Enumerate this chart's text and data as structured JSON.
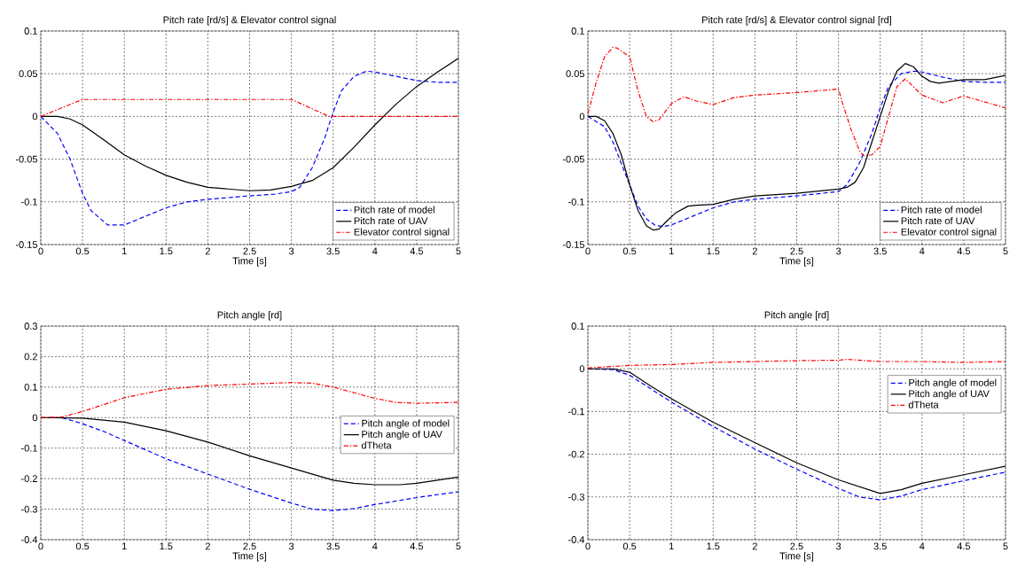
{
  "chart_data": [
    {
      "type": "line",
      "title": "Pitch rate [rd/s] & Elevator control signal",
      "xlabel": "Time [s]",
      "xlim": [
        0,
        5
      ],
      "ylim": [
        -0.15,
        0.1
      ],
      "xticks": [
        0,
        0.5,
        1,
        1.5,
        2,
        2.5,
        3,
        3.5,
        4,
        4.5,
        5
      ],
      "yticks": [
        -0.15,
        -0.1,
        -0.05,
        0,
        0.05,
        0.1
      ],
      "grid": true,
      "legend": "bottom right",
      "marker": "none",
      "series": [
        {
          "name": "Pitch rate of model",
          "color": "#0000ff",
          "line_style": "dashed",
          "x": [
            0,
            0.2,
            0.35,
            0.5,
            0.6,
            0.8,
            1.0,
            1.25,
            1.5,
            1.75,
            2,
            2.5,
            2.8,
            3.0,
            3.1,
            3.25,
            3.4,
            3.5,
            3.6,
            3.75,
            3.9,
            4.0,
            4.25,
            4.5,
            4.75,
            5
          ],
          "values": [
            0,
            -0.02,
            -0.05,
            -0.09,
            -0.11,
            -0.127,
            -0.127,
            -0.117,
            -0.107,
            -0.1,
            -0.097,
            -0.093,
            -0.091,
            -0.088,
            -0.083,
            -0.06,
            -0.025,
            0.005,
            0.03,
            0.047,
            0.053,
            0.052,
            0.047,
            0.042,
            0.04,
            0.04
          ]
        },
        {
          "name": "Pitch rate of UAV",
          "color": "#000000",
          "line_style": "solid",
          "x": [
            0,
            0.2,
            0.35,
            0.5,
            0.75,
            1.0,
            1.25,
            1.5,
            1.75,
            2,
            2.5,
            2.75,
            3,
            3.25,
            3.5,
            3.75,
            4,
            4.25,
            4.5,
            4.75,
            5
          ],
          "values": [
            0,
            0,
            -0.003,
            -0.01,
            -0.027,
            -0.045,
            -0.058,
            -0.069,
            -0.077,
            -0.083,
            -0.087,
            -0.086,
            -0.082,
            -0.075,
            -0.06,
            -0.036,
            -0.01,
            0.014,
            0.035,
            0.052,
            0.068
          ]
        },
        {
          "name": "Elevator control signal",
          "color": "#ff0000",
          "line_style": "dashdot",
          "x": [
            0,
            0.5,
            3.0,
            3.45,
            5
          ],
          "values": [
            0,
            0.02,
            0.02,
            0,
            0
          ]
        }
      ]
    },
    {
      "type": "line",
      "title": "Pitch rate [rd/s] & Elevator control signal [rd]",
      "xlabel": "Time [s]",
      "xlim": [
        0,
        5
      ],
      "ylim": [
        -0.15,
        0.1
      ],
      "xticks": [
        0,
        0.5,
        1,
        1.5,
        2,
        2.5,
        3,
        3.5,
        4,
        4.5,
        5
      ],
      "yticks": [
        -0.15,
        -0.1,
        -0.05,
        0,
        0.05,
        0.1
      ],
      "grid": true,
      "legend": "bottom right",
      "marker": "none",
      "series": [
        {
          "name": "Pitch rate of model",
          "color": "#0000ff",
          "line_style": "dashed",
          "x": [
            0,
            0.2,
            0.3,
            0.4,
            0.5,
            0.6,
            0.7,
            0.8,
            0.9,
            1.0,
            1.25,
            1.5,
            1.75,
            2,
            2.5,
            3,
            3.1,
            3.25,
            3.4,
            3.5,
            3.6,
            3.75,
            3.9,
            4,
            4.25,
            4.5,
            4.75,
            5
          ],
          "values": [
            0,
            -0.012,
            -0.03,
            -0.055,
            -0.08,
            -0.105,
            -0.12,
            -0.127,
            -0.129,
            -0.127,
            -0.117,
            -0.107,
            -0.1,
            -0.097,
            -0.093,
            -0.088,
            -0.08,
            -0.055,
            -0.02,
            0.01,
            0.035,
            0.05,
            0.053,
            0.052,
            0.046,
            0.041,
            0.04,
            0.04
          ]
        },
        {
          "name": "Pitch rate of UAV",
          "color": "#000000",
          "line_style": "solid",
          "x": [
            0,
            0.1,
            0.2,
            0.3,
            0.4,
            0.5,
            0.6,
            0.7,
            0.78,
            0.85,
            0.95,
            1.05,
            1.2,
            1.3,
            1.5,
            1.75,
            2,
            2.5,
            3,
            3.1,
            3.2,
            3.3,
            3.4,
            3.5,
            3.6,
            3.7,
            3.8,
            3.9,
            4.0,
            4.1,
            4.2,
            4.5,
            4.75,
            5
          ],
          "values": [
            0,
            0,
            -0.005,
            -0.02,
            -0.045,
            -0.08,
            -0.11,
            -0.128,
            -0.133,
            -0.132,
            -0.122,
            -0.113,
            -0.105,
            -0.104,
            -0.103,
            -0.097,
            -0.093,
            -0.09,
            -0.085,
            -0.083,
            -0.077,
            -0.06,
            -0.03,
            0.0,
            0.03,
            0.053,
            0.062,
            0.058,
            0.047,
            0.041,
            0.039,
            0.043,
            0.043,
            0.048
          ]
        },
        {
          "name": "Elevator control signal",
          "color": "#ff0000",
          "line_style": "dashdot",
          "x": [
            0,
            0.1,
            0.2,
            0.3,
            0.35,
            0.5,
            0.6,
            0.7,
            0.78,
            0.85,
            1.0,
            1.15,
            1.3,
            1.5,
            1.75,
            2,
            2.5,
            3,
            3.05,
            3.15,
            3.25,
            3.3,
            3.4,
            3.5,
            3.6,
            3.7,
            3.8,
            4.0,
            4.25,
            4.5,
            4.75,
            5
          ],
          "values": [
            0.003,
            0.04,
            0.07,
            0.081,
            0.08,
            0.07,
            0.03,
            0.0,
            -0.006,
            -0.004,
            0.015,
            0.023,
            0.018,
            0.014,
            0.022,
            0.025,
            0.028,
            0.032,
            0.015,
            -0.015,
            -0.04,
            -0.046,
            -0.045,
            -0.035,
            0.0,
            0.035,
            0.044,
            0.025,
            0.016,
            0.024,
            0.017,
            0.01
          ]
        }
      ]
    },
    {
      "type": "line",
      "title": "Pitch angle [rd]",
      "xlabel": "Time [s]",
      "xlim": [
        0,
        5
      ],
      "ylim": [
        -0.4,
        0.3
      ],
      "xticks": [
        0,
        0.5,
        1,
        1.5,
        2,
        2.5,
        3,
        3.5,
        4,
        4.5,
        5
      ],
      "yticks": [
        -0.4,
        -0.3,
        -0.2,
        -0.1,
        0,
        0.1,
        0.2,
        0.3
      ],
      "grid": true,
      "legend": "right",
      "marker": "none",
      "series": [
        {
          "name": "Pitch angle of model",
          "color": "#0000ff",
          "line_style": "dashed",
          "x": [
            0,
            0.25,
            0.5,
            0.75,
            1,
            1.25,
            1.5,
            2,
            2.5,
            3,
            3.25,
            3.5,
            3.75,
            4,
            4.5,
            5
          ],
          "values": [
            0,
            0,
            -0.02,
            -0.045,
            -0.075,
            -0.105,
            -0.135,
            -0.185,
            -0.235,
            -0.28,
            -0.3,
            -0.305,
            -0.298,
            -0.285,
            -0.262,
            -0.243
          ]
        },
        {
          "name": "Pitch angle of UAV",
          "color": "#000000",
          "line_style": "solid",
          "x": [
            0,
            0.5,
            1,
            1.5,
            2,
            2.5,
            3,
            3.5,
            3.75,
            4,
            4.3,
            4.5,
            5
          ],
          "values": [
            0,
            -0.002,
            -0.015,
            -0.043,
            -0.08,
            -0.125,
            -0.165,
            -0.205,
            -0.215,
            -0.22,
            -0.22,
            -0.215,
            -0.195
          ]
        },
        {
          "name": "dTheta",
          "color": "#ff0000",
          "line_style": "dashdot",
          "x": [
            0,
            0.25,
            0.5,
            1,
            1.5,
            2,
            2.5,
            3,
            3.25,
            3.5,
            4,
            4.25,
            4.5,
            5
          ],
          "values": [
            0,
            0.002,
            0.02,
            0.065,
            0.093,
            0.105,
            0.11,
            0.115,
            0.113,
            0.1,
            0.063,
            0.05,
            0.047,
            0.05
          ]
        }
      ]
    },
    {
      "type": "line",
      "title": "Pitch angle [rd]",
      "xlabel": "Time [s]",
      "xlim": [
        0,
        5
      ],
      "ylim": [
        -0.4,
        0.1
      ],
      "xticks": [
        0,
        0.5,
        1,
        1.5,
        2,
        2.5,
        3,
        3.5,
        4,
        4.5,
        5
      ],
      "yticks": [
        -0.4,
        -0.3,
        -0.2,
        -0.1,
        0,
        0.1
      ],
      "grid": true,
      "legend": "top right",
      "marker": "none",
      "series": [
        {
          "name": "Pitch angle of model",
          "color": "#0000ff",
          "line_style": "dashed",
          "x": [
            0,
            0.3,
            0.5,
            1,
            1.5,
            2,
            2.5,
            3,
            3.25,
            3.5,
            3.75,
            4,
            4.5,
            5
          ],
          "values": [
            0,
            -0.002,
            -0.015,
            -0.078,
            -0.135,
            -0.188,
            -0.235,
            -0.28,
            -0.3,
            -0.307,
            -0.298,
            -0.283,
            -0.262,
            -0.242
          ]
        },
        {
          "name": "Pitch angle of UAV",
          "color": "#000000",
          "line_style": "solid",
          "x": [
            0,
            0.3,
            0.5,
            0.75,
            1,
            1.5,
            2,
            2.5,
            3,
            3.5,
            3.75,
            4,
            4.5,
            5
          ],
          "values": [
            0,
            0,
            -0.008,
            -0.04,
            -0.07,
            -0.125,
            -0.173,
            -0.22,
            -0.26,
            -0.292,
            -0.283,
            -0.268,
            -0.248,
            -0.228
          ]
        },
        {
          "name": "dTheta",
          "color": "#ff0000",
          "line_style": "dashdot",
          "x": [
            0,
            0.5,
            1,
            1.5,
            2,
            2.5,
            3,
            3.1,
            3.5,
            4,
            4.5,
            5
          ],
          "values": [
            0.002,
            0.008,
            0.01,
            0.015,
            0.017,
            0.019,
            0.02,
            0.022,
            0.017,
            0.017,
            0.015,
            0.017
          ]
        }
      ]
    }
  ]
}
